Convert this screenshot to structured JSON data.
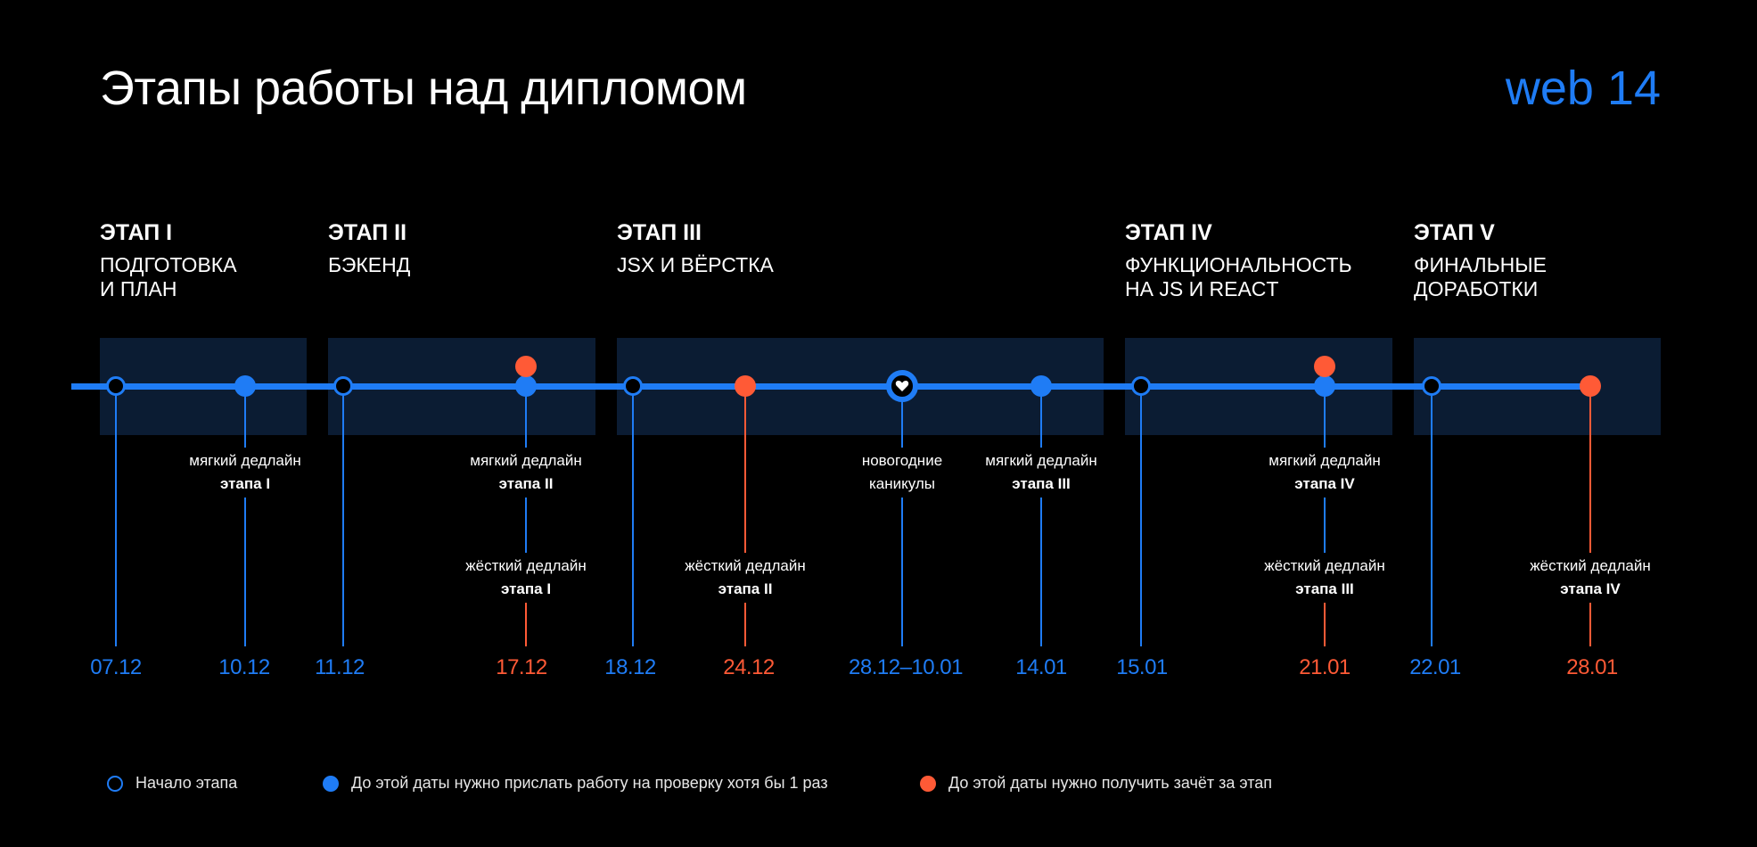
{
  "header": {
    "title": "Этапы работы над дипломом",
    "brand": "web 14"
  },
  "stages": [
    {
      "num": "ЭТАП I",
      "name": "ПОДГОТОВКА\nИ ПЛАН"
    },
    {
      "num": "ЭТАП II",
      "name": "БЭКЕНД"
    },
    {
      "num": "ЭТАП III",
      "name": "JSX И ВЁРСТКА"
    },
    {
      "num": "ЭТАП IV",
      "name": "ФУНКЦИОНАЛЬНОСТЬ\nНА JS И REACT"
    },
    {
      "num": "ЭТАП V",
      "name": "ФИНАЛЬНЫЕ\nДОРАБОТКИ"
    }
  ],
  "labels": {
    "soft1": {
      "l1": "мягкий дедлайн",
      "l2": "этапа I"
    },
    "soft2": {
      "l1": "мягкий дедлайн",
      "l2": "этапа II"
    },
    "hard1": {
      "l1": "жёсткий дедлайн",
      "l2": "этапа I"
    },
    "hard2": {
      "l1": "жёсткий дедлайн",
      "l2": "этапа II"
    },
    "holiday": {
      "l1": "новогодние",
      "l2": "каникулы"
    },
    "soft3": {
      "l1": "мягкий дедлайн",
      "l2": "этапа III"
    },
    "soft4": {
      "l1": "мягкий дедлайн",
      "l2": "этапа IV"
    },
    "hard3": {
      "l1": "жёсткий дедлайн",
      "l2": "этапа III"
    },
    "hard4": {
      "l1": "жёсткий дедлайн",
      "l2": "этапа IV"
    }
  },
  "dates": {
    "d0712": "07.12",
    "d1012": "10.12",
    "d1112": "11.12",
    "d1712": "17.12",
    "d1812": "18.12",
    "d2412": "24.12",
    "dhol": "28.12–10.01",
    "d1401": "14.01",
    "d1501": "15.01",
    "d2101": "21.01",
    "d2201": "22.01",
    "d2801": "28.01"
  },
  "legend": {
    "start": "Начало этапа",
    "soft": "До этой даты нужно прислать работу на проверку хотя бы 1 раз",
    "hard": "До этой даты нужно получить зачёт за этап"
  },
  "colors": {
    "blue": "#1f7cf5",
    "red": "#ff5a36",
    "band": "#0b1c33",
    "background": "#000000"
  },
  "icons": {
    "holiday": "heart-icon"
  }
}
